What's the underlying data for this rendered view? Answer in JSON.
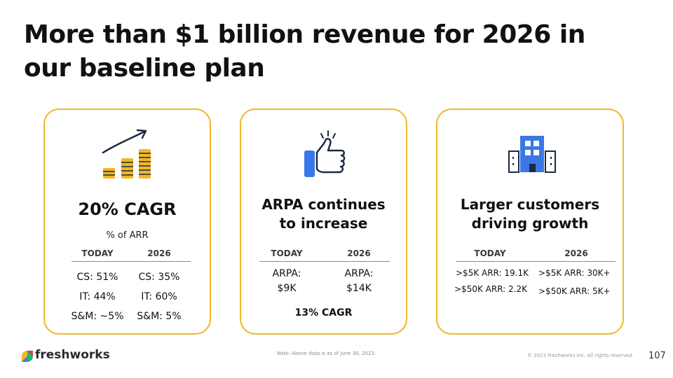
{
  "slide": {
    "title": "More than $1 billion revenue for 2026 in our baseline plan",
    "note": "Note: Above data is as of June 30, 2023.",
    "copyright": "© 2023 Freshworks Inc. All rights reserved.",
    "page_number": "107",
    "brand": "freshworks"
  },
  "cards": [
    {
      "icon": "growth-chart-icon",
      "heading": "20% CAGR",
      "subheading": "% of ARR",
      "col_today": "TODAY",
      "col_2026": "2026",
      "rows": [
        {
          "today": "CS: 51%",
          "y2026": "CS: 35%"
        },
        {
          "today": "IT: 44%",
          "y2026": "IT: 60%"
        },
        {
          "today": "S&M: ~5%",
          "y2026": "S&M: 5%"
        }
      ]
    },
    {
      "icon": "thumbs-up-icon",
      "heading_line1": "ARPA continues",
      "heading_line2": "to increase",
      "col_today": "TODAY",
      "col_2026": "2026",
      "today_label": "ARPA:",
      "today_value": "$9K",
      "y2026_label": "ARPA:",
      "y2026_value": "$14K",
      "footer": "13% CAGR"
    },
    {
      "icon": "office-building-icon",
      "heading_line1": "Larger customers",
      "heading_line2": "driving growth",
      "col_today": "TODAY",
      "col_2026": "2026",
      "rows": [
        {
          "today": ">$5K ARR: 19.1K",
          "y2026": ">$5K ARR: 30K+"
        },
        {
          "today": ">$50K ARR: 2.2K",
          "y2026": ">$50K ARR: 5K+"
        }
      ]
    }
  ],
  "colors": {
    "accent_border": "#f3b723",
    "coin_gold": "#f3b723",
    "icon_blue": "#3b78e7",
    "icon_navy": "#1d2a44"
  }
}
